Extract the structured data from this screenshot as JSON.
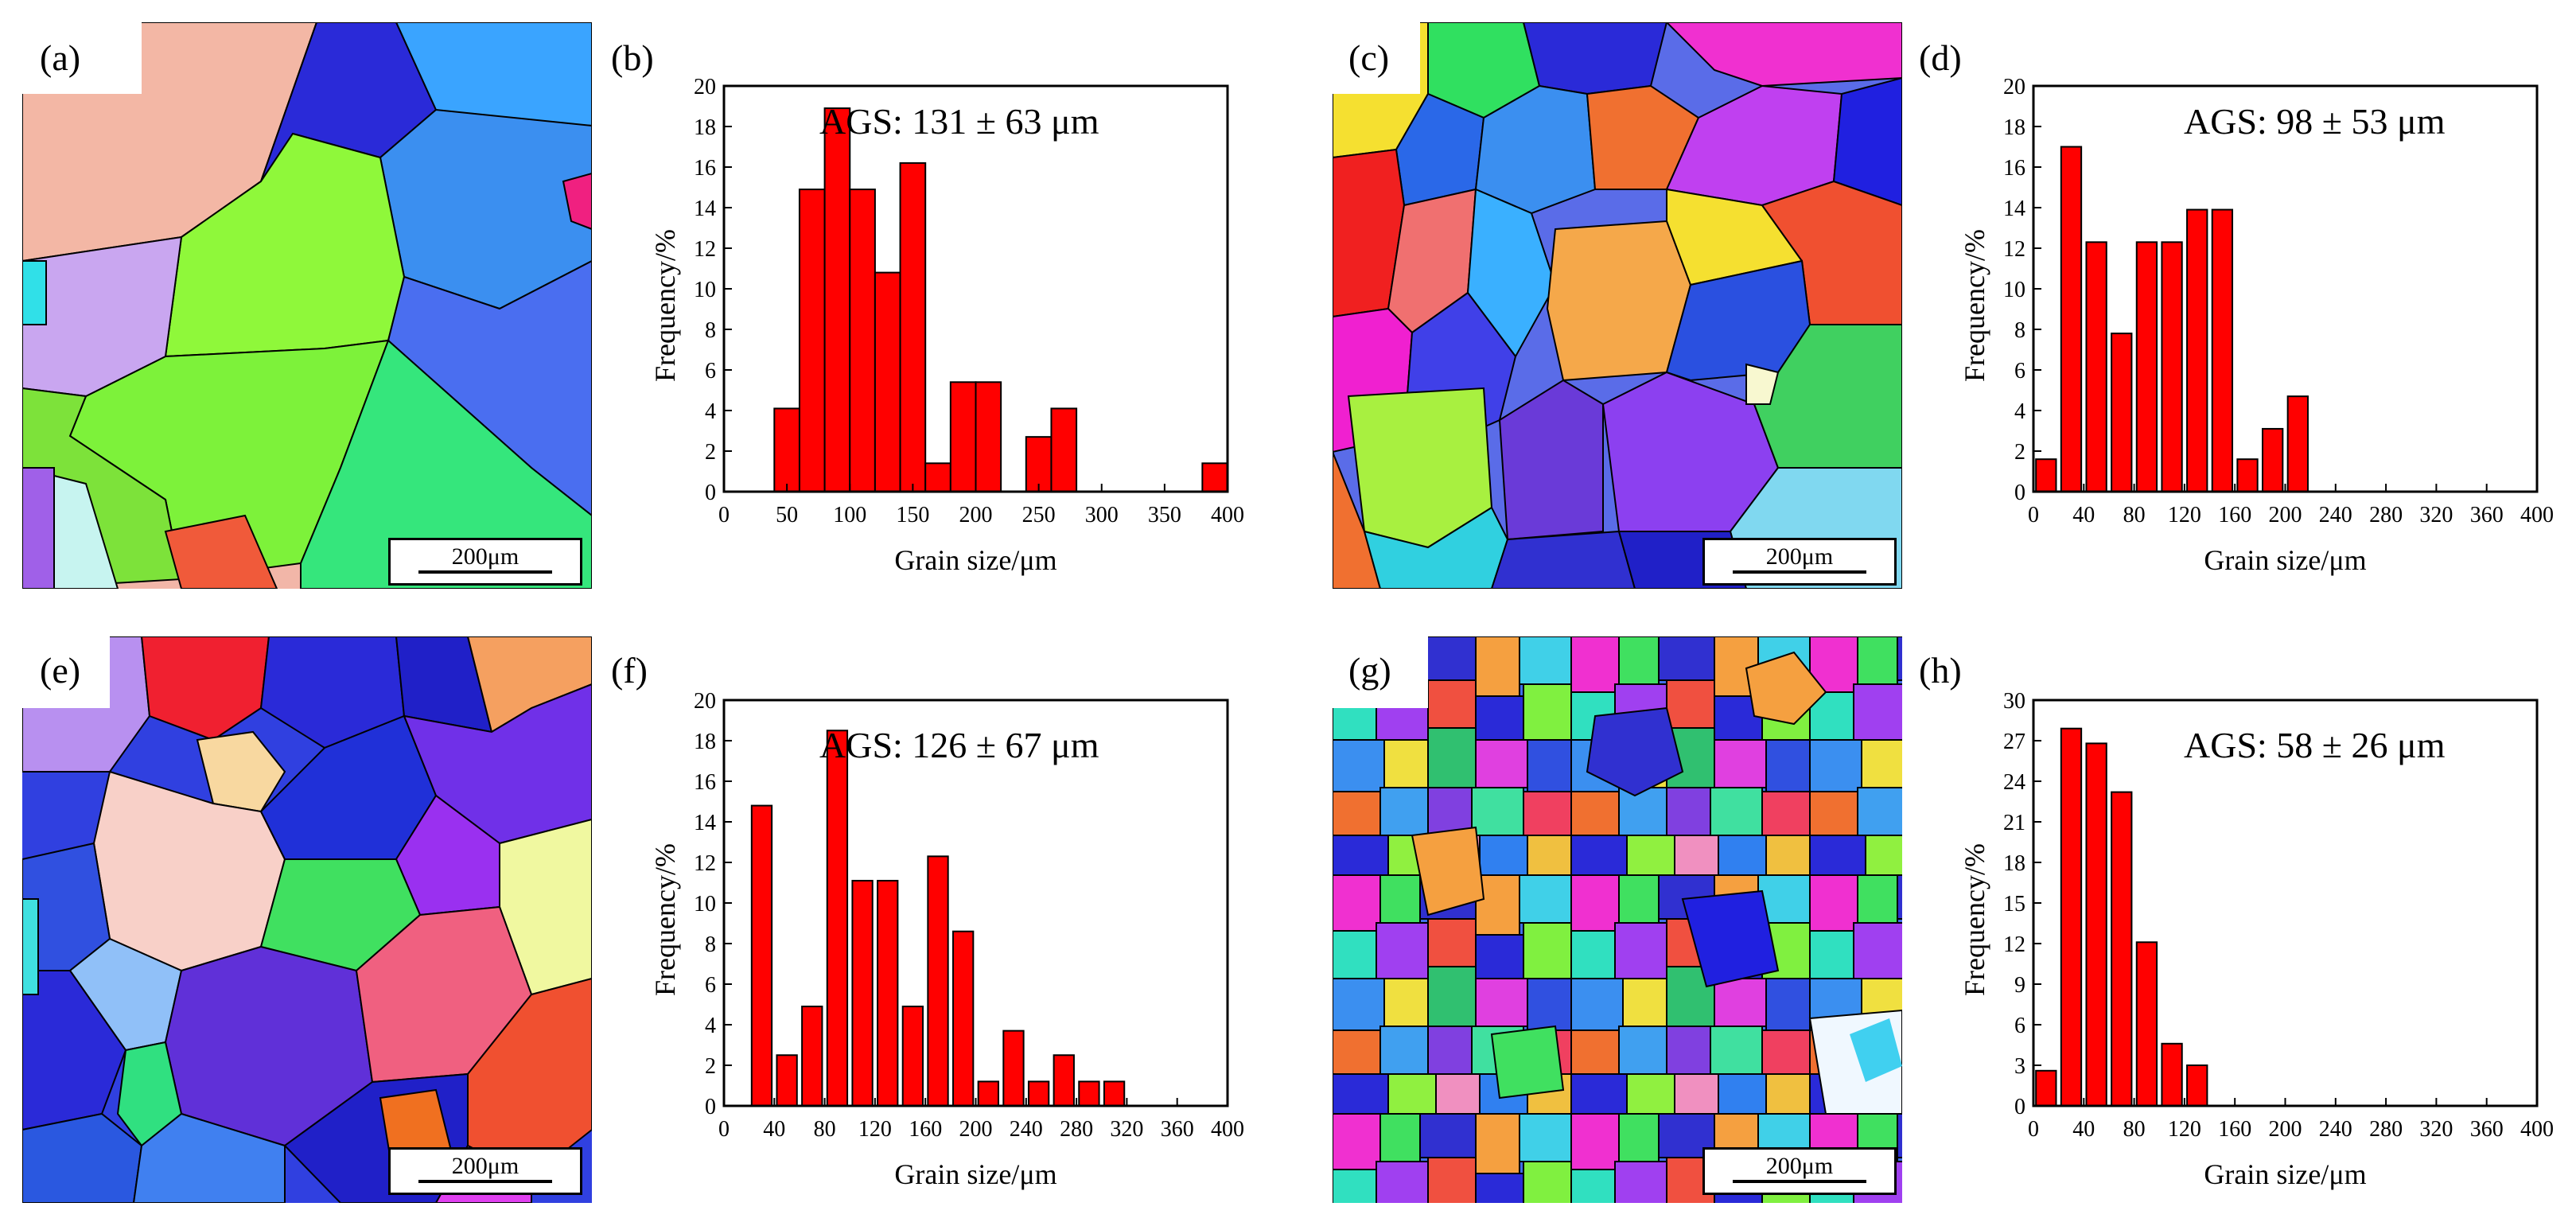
{
  "panel_labels": [
    "(a)",
    "(b)",
    "(c)",
    "(d)",
    "(e)",
    "(f)",
    "(g)",
    "(h)"
  ],
  "scale_bar_text": "200μm",
  "colors": {
    "bar": "#ff0000",
    "grain_boundary": "#000000"
  },
  "chart_data": [
    {
      "id": "b",
      "type": "bar",
      "annotation": "AGS: 131 ± 63 μm",
      "xlabel": "Grain size/μm",
      "ylabel": "Frequency/%",
      "xlim": [
        0,
        400
      ],
      "ylim": [
        0,
        20
      ],
      "xticks": [
        0,
        50,
        100,
        150,
        200,
        250,
        300,
        350,
        400
      ],
      "yticks": [
        0,
        2,
        4,
        6,
        8,
        10,
        12,
        14,
        16,
        18,
        20
      ],
      "bin_width": 20,
      "bin_centers": [
        50,
        70,
        90,
        110,
        130,
        150,
        170,
        190,
        210,
        250,
        270,
        390
      ],
      "values": [
        4.1,
        14.9,
        18.9,
        14.9,
        10.8,
        16.2,
        1.4,
        5.4,
        5.4,
        2.7,
        4.1,
        1.4
      ]
    },
    {
      "id": "d",
      "type": "bar",
      "annotation": "AGS: 98 ± 53 μm",
      "xlabel": "Grain size/μm",
      "ylabel": "Frequency/%",
      "xlim": [
        0,
        400
      ],
      "ylim": [
        0,
        20
      ],
      "xticks": [
        0,
        40,
        80,
        120,
        160,
        200,
        240,
        280,
        320,
        360,
        400
      ],
      "yticks": [
        0,
        2,
        4,
        6,
        8,
        10,
        12,
        14,
        16,
        18,
        20
      ],
      "bin_width": 16,
      "bin_centers": [
        10,
        30,
        50,
        70,
        90,
        110,
        130,
        150,
        170,
        190,
        210
      ],
      "values": [
        1.6,
        17.0,
        12.3,
        7.8,
        12.3,
        12.3,
        13.9,
        13.9,
        1.6,
        3.1,
        4.7
      ]
    },
    {
      "id": "f",
      "type": "bar",
      "annotation": "AGS: 126 ± 67 μm",
      "xlabel": "Grain size/μm",
      "ylabel": "Frequency/%",
      "xlim": [
        0,
        400
      ],
      "ylim": [
        0,
        20
      ],
      "xticks": [
        0,
        40,
        80,
        120,
        160,
        200,
        240,
        280,
        320,
        360,
        400
      ],
      "yticks": [
        0,
        2,
        4,
        6,
        8,
        10,
        12,
        14,
        16,
        18,
        20
      ],
      "bin_width": 16,
      "bin_centers": [
        30,
        50,
        70,
        90,
        110,
        130,
        150,
        170,
        190,
        210,
        230,
        250,
        270,
        290,
        310
      ],
      "values": [
        14.8,
        2.5,
        4.9,
        18.5,
        11.1,
        11.1,
        4.9,
        12.3,
        8.6,
        1.2,
        3.7,
        1.2,
        2.5,
        1.2,
        1.2
      ]
    },
    {
      "id": "h",
      "type": "bar",
      "annotation": "AGS: 58 ± 26 μm",
      "xlabel": "Grain size/μm",
      "ylabel": "Frequency/%",
      "xlim": [
        0,
        400
      ],
      "ylim": [
        0,
        30
      ],
      "xticks": [
        0,
        40,
        80,
        120,
        160,
        200,
        240,
        280,
        320,
        360,
        400
      ],
      "yticks": [
        0,
        3,
        6,
        9,
        12,
        15,
        18,
        21,
        24,
        27,
        30
      ],
      "bin_width": 16,
      "bin_centers": [
        10,
        30,
        50,
        70,
        90,
        110,
        130
      ],
      "values": [
        2.6,
        27.9,
        26.8,
        23.2,
        12.1,
        4.6,
        3.0
      ]
    }
  ]
}
